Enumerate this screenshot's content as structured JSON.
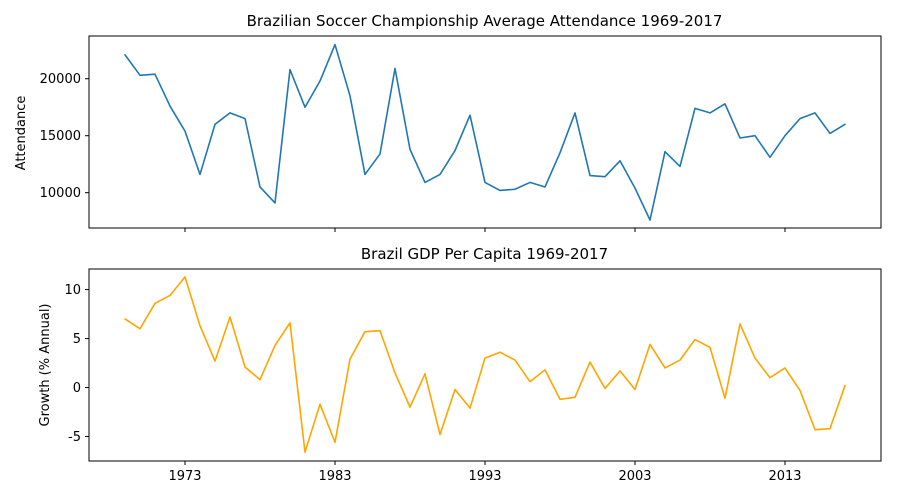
{
  "chart_data": [
    {
      "type": "line",
      "title": "Brazilian Soccer Championship Average Attendance 1969-2017",
      "xlabel": "",
      "ylabel": "Attendance",
      "x": [
        1969,
        1970,
        1971,
        1972,
        1973,
        1974,
        1975,
        1976,
        1977,
        1978,
        1979,
        1980,
        1981,
        1982,
        1983,
        1984,
        1985,
        1986,
        1987,
        1988,
        1989,
        1990,
        1991,
        1992,
        1993,
        1994,
        1995,
        1996,
        1997,
        1998,
        1999,
        2000,
        2001,
        2002,
        2003,
        2004,
        2005,
        2006,
        2007,
        2008,
        2009,
        2010,
        2011,
        2012,
        2013,
        2014,
        2015,
        2016,
        2017
      ],
      "series": [
        {
          "name": "",
          "color": "#1f77b4",
          "values": [
            22100,
            20300,
            20400,
            17600,
            15400,
            11600,
            16000,
            17000,
            16500,
            10500,
            9100,
            20800,
            17500,
            19800,
            23000,
            18500,
            11600,
            13400,
            20900,
            13800,
            10900,
            11600,
            13700,
            16800,
            10900,
            10200,
            10300,
            10900,
            10500,
            13500,
            17000,
            11500,
            11400,
            12800,
            10400,
            7600,
            13600,
            12300,
            17400,
            17000,
            17800,
            14800,
            15000,
            13100,
            15000,
            16500,
            17000,
            15200,
            16000
          ]
        }
      ],
      "xlim": [
        1966.6,
        2019.4
      ],
      "ylim": [
        6900,
        23750
      ],
      "yticks": [
        10000,
        15000,
        20000
      ],
      "ytick_labels": [
        "10000",
        "15000",
        "20000"
      ],
      "xticks": [
        1973,
        1983,
        1993,
        2003,
        2013
      ],
      "xtick_labels": [
        "",
        "",
        "",
        "",
        ""
      ],
      "grid": false,
      "legend": "none"
    },
    {
      "type": "line",
      "title": "Brazil GDP Per Capita 1969-2017",
      "xlabel": "",
      "ylabel": "Growth (% Annual)",
      "x": [
        1969,
        1970,
        1971,
        1972,
        1973,
        1974,
        1975,
        1976,
        1977,
        1978,
        1979,
        1980,
        1981,
        1982,
        1983,
        1984,
        1985,
        1986,
        1987,
        1988,
        1989,
        1990,
        1991,
        1992,
        1993,
        1994,
        1995,
        1996,
        1997,
        1998,
        1999,
        2000,
        2001,
        2002,
        2003,
        2004,
        2005,
        2006,
        2007,
        2008,
        2009,
        2010,
        2011,
        2012,
        2013,
        2014,
        2015,
        2016,
        2017
      ],
      "series": [
        {
          "name": "",
          "color": "#ffa500",
          "values": [
            7.0,
            6.0,
            8.6,
            9.4,
            11.3,
            6.3,
            2.7,
            7.2,
            2.1,
            0.8,
            4.3,
            6.6,
            -6.6,
            -1.7,
            -5.6,
            2.9,
            5.7,
            5.8,
            1.5,
            -2.0,
            1.4,
            -4.8,
            -0.2,
            -2.1,
            3.0,
            3.6,
            2.8,
            0.6,
            1.8,
            -1.2,
            -1.0,
            2.6,
            -0.1,
            1.7,
            -0.2,
            4.4,
            2.0,
            2.8,
            4.9,
            4.1,
            -1.1,
            6.5,
            3.0,
            1.0,
            2.0,
            -0.3,
            -4.3,
            -4.2,
            0.2
          ]
        }
      ],
      "xlim": [
        1966.6,
        2019.4
      ],
      "ylim": [
        -7.5,
        12.1
      ],
      "yticks": [
        -5,
        0,
        5,
        10
      ],
      "ytick_labels": [
        "-5",
        "0",
        "5",
        "10"
      ],
      "xticks": [
        1973,
        1983,
        1993,
        2003,
        2013
      ],
      "xtick_labels": [
        "1973",
        "1983",
        "1993",
        "2003",
        "2013"
      ],
      "grid": false,
      "legend": "none"
    }
  ]
}
